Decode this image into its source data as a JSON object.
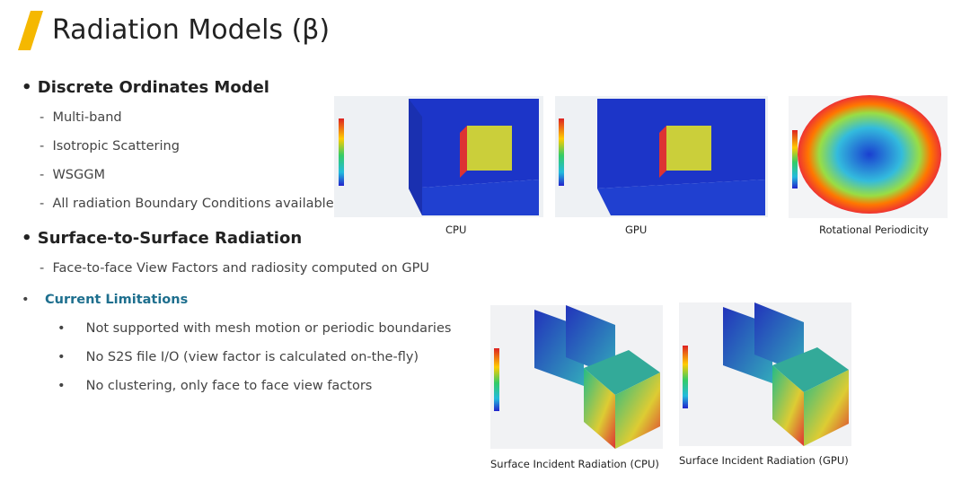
{
  "header": {
    "title": "Radiation Models (β)"
  },
  "sections": [
    {
      "title": "Discrete Ordinates Model",
      "items": [
        "Multi-band",
        "Isotropic Scattering",
        "WSGGM",
        "All radiation Boundary Conditions available"
      ]
    },
    {
      "title": "Surface-to-Surface Radiation",
      "items": [
        "Face-to-face View Factors and radiosity computed on GPU"
      ]
    }
  ],
  "limitations": {
    "title": "Current Limitations",
    "items": [
      "Not supported with mesh motion or periodic boundaries",
      "No S2S file I/O (view factor is calculated on-the-fly)",
      "No clustering, only face to face view factors"
    ]
  },
  "figures": [
    {
      "caption": "CPU"
    },
    {
      "caption": "GPU"
    },
    {
      "caption": "Rotational Periodicity"
    },
    {
      "caption": "Surface Incident Radiation (CPU)"
    },
    {
      "caption": "Surface Incident Radiation (GPU)"
    }
  ]
}
